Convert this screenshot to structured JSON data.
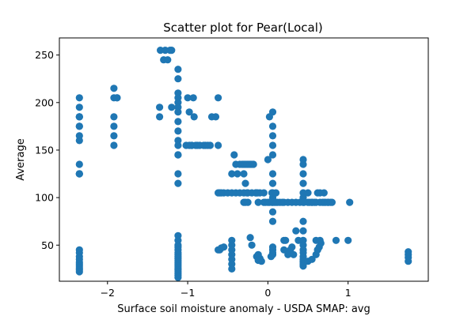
{
  "chart_data": {
    "type": "scatter",
    "title": "Scatter plot for Pear(Local)",
    "xlabel": "Surface soil moisture anomaly  - USDA SMAP: avg",
    "ylabel": "Average",
    "xlim": [
      -2.6,
      2.0
    ],
    "ylim": [
      12,
      268
    ],
    "xticks": [
      -2,
      -1,
      0,
      1
    ],
    "xtick_labels": [
      "−2",
      "−1",
      "0",
      "1"
    ],
    "yticks": [
      50,
      100,
      150,
      200,
      250
    ],
    "yticks_labels": [
      "50",
      "100",
      "150",
      "200",
      "250"
    ],
    "grid": false,
    "color": "#1f77b4",
    "series": [
      {
        "x": [
          -2.35,
          -2.35,
          -2.35,
          -2.35,
          -2.35,
          -2.35,
          -2.35,
          -2.35,
          -2.35,
          -2.35,
          -2.35,
          -2.35,
          -2.35,
          -2.35,
          -2.35,
          -2.35,
          -2.35,
          -2.35,
          -2.35,
          -2.35,
          -2.35,
          -2.35,
          -2.35,
          -1.92,
          -1.92,
          -1.92,
          -1.92,
          -1.92,
          -1.92,
          -1.88,
          -1.88,
          -1.35,
          -1.35,
          -1.34,
          -1.28,
          -1.3,
          -1.25,
          -1.22,
          -1.2,
          -1.2,
          -1.12,
          -1.12,
          -1.12,
          -1.12,
          -1.12,
          -1.12,
          -1.12,
          -1.12,
          -1.12,
          -1.12,
          -1.12,
          -1.12,
          -1.12,
          -1.12,
          -1.12,
          -1.12,
          -1.12,
          -1.12,
          -1.12,
          -1.12,
          -1.12,
          -1.12,
          -1.12,
          -1.12,
          -1.12,
          -1.12,
          -1.12,
          -1.12,
          -1.12,
          -1.12,
          -1.12,
          -1.12,
          -1.12,
          -1.12,
          -1.02,
          -0.98,
          -0.95,
          -1.0,
          -0.98,
          -0.93,
          -0.92,
          -0.88,
          -0.78,
          -0.72,
          -0.7,
          -0.65,
          -0.62,
          -0.62,
          -0.95,
          -0.9,
          -0.85,
          -0.8,
          -0.75,
          -0.62,
          -0.6,
          -0.58,
          -0.55,
          -0.62,
          -0.6,
          -0.58,
          -0.55,
          -0.5,
          -0.45,
          -0.4,
          -0.35,
          -0.3,
          -0.25,
          -0.2,
          -0.15,
          -0.1,
          -0.05,
          -0.45,
          -0.42,
          -0.4,
          -0.38,
          -0.45,
          -0.45,
          -0.45,
          -0.45,
          -0.45,
          -0.45,
          -0.45,
          -0.35,
          -0.32,
          -0.3,
          -0.28,
          -0.26,
          -0.24,
          -0.22,
          -0.2,
          -0.18,
          -0.3,
          -0.28,
          -0.26,
          -0.3,
          -0.28,
          -0.25,
          -0.22,
          -0.2,
          -0.15,
          -0.13,
          -0.12,
          -0.12,
          -0.1,
          -0.08,
          -0.14,
          -0.12,
          -0.05,
          -0.03,
          0.0,
          0.02,
          0.05,
          0.08,
          0.1,
          0.12,
          0.15,
          0.18,
          0.2,
          0.25,
          0.3,
          0.35,
          0.4,
          0.45,
          0.5,
          0.55,
          0.6,
          0.65,
          0.7,
          0.75,
          0.8,
          0.06,
          0.06,
          0.06,
          0.06,
          0.06,
          0.06,
          0.06,
          0.06,
          0.06,
          0.06,
          0.06,
          0.06,
          0.06,
          0.06,
          0.06,
          0.06,
          0.02,
          0.0,
          0.05,
          0.1,
          0.04,
          0.2,
          0.25,
          0.3,
          0.35,
          0.38,
          0.2,
          0.22,
          0.28,
          0.32,
          0.44,
          0.44,
          0.44,
          0.44,
          0.44,
          0.44,
          0.44,
          0.44,
          0.44,
          0.44,
          0.44,
          0.44,
          0.44,
          0.44,
          0.44,
          0.44,
          0.44,
          0.44,
          0.44,
          0.5,
          0.52,
          0.55,
          0.58,
          0.6,
          0.62,
          0.65,
          0.68,
          0.7,
          0.72,
          0.75,
          0.78,
          0.62,
          0.64,
          0.66,
          0.5,
          0.55,
          0.6,
          0.62,
          0.65,
          0.85,
          1.0,
          1.02,
          1.75,
          1.75,
          1.75,
          1.75
        ],
        "y": [
          205,
          195,
          185,
          185,
          175,
          165,
          135,
          125,
          125,
          45,
          42,
          38,
          35,
          32,
          30,
          28,
          26,
          24,
          22,
          185,
          175,
          160,
          125,
          215,
          205,
          185,
          175,
          165,
          155,
          205,
          205,
          195,
          185,
          255,
          255,
          245,
          245,
          255,
          255,
          195,
          235,
          225,
          210,
          205,
          200,
          195,
          190,
          180,
          170,
          160,
          155,
          145,
          145,
          125,
          115,
          60,
          55,
          50,
          48,
          45,
          42,
          40,
          38,
          36,
          34,
          32,
          30,
          28,
          26,
          24,
          22,
          20,
          18,
          16,
          155,
          155,
          155,
          205,
          190,
          205,
          185,
          155,
          155,
          155,
          185,
          185,
          205,
          155,
          155,
          155,
          155,
          155,
          155,
          105,
          105,
          105,
          105,
          45,
          45,
          47,
          48,
          105,
          105,
          105,
          105,
          105,
          105,
          105,
          105,
          105,
          105,
          125,
          145,
          135,
          125,
          55,
          50,
          45,
          40,
          35,
          30,
          25,
          135,
          135,
          135,
          135,
          135,
          135,
          135,
          135,
          135,
          125,
          115,
          105,
          95,
          95,
          95,
          58,
          50,
          105,
          105,
          95,
          40,
          36,
          33,
          38,
          34,
          95,
          95,
          95,
          95,
          95,
          95,
          95,
          95,
          95,
          95,
          95,
          95,
          95,
          95,
          95,
          95,
          95,
          95,
          95,
          95,
          95,
          95,
          95,
          190,
          175,
          165,
          155,
          145,
          125,
          115,
          105,
          100,
          95,
          85,
          75,
          48,
          45,
          42,
          40,
          185,
          140,
          105,
          105,
          38,
          45,
          40,
          48,
          65,
          55,
          55,
          55,
          45,
          40,
          140,
          135,
          125,
          115,
          105,
          100,
          95,
          75,
          65,
          55,
          50,
          45,
          42,
          38,
          35,
          33,
          32,
          30,
          28,
          105,
          95,
          95,
          95,
          55,
          105,
          105,
          95,
          105,
          95,
          95,
          95,
          45,
          48,
          52,
          33,
          35,
          40,
          45,
          55,
          55,
          55,
          95,
          43,
          40,
          37,
          33
        ]
      }
    ]
  }
}
